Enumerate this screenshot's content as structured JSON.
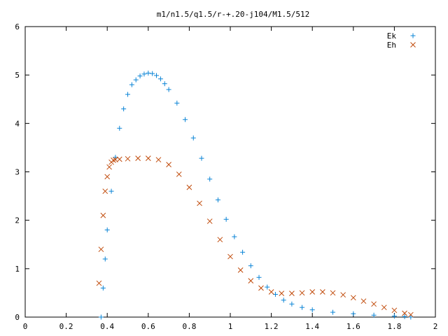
{
  "chart_data": {
    "type": "scatter",
    "title": "m1/n1.5/q1.5/r-+.20-j104/M1.5/512",
    "xlabel": "",
    "ylabel": "",
    "xlim": [
      0,
      2
    ],
    "ylim": [
      0,
      6
    ],
    "x_ticks": [
      0,
      0.2,
      0.4,
      0.6,
      0.8,
      1,
      1.2,
      1.4,
      1.6,
      1.8,
      2
    ],
    "x_tick_labels": [
      "0",
      "0.2",
      "0.4",
      "0.6",
      "0.8",
      "1",
      "1.2",
      "1.4",
      "1.6",
      "1.8",
      "2"
    ],
    "y_ticks": [
      0,
      1,
      2,
      3,
      4,
      5,
      6
    ],
    "y_tick_labels": [
      "0",
      "1",
      "2",
      "3",
      "4",
      "5",
      "6"
    ],
    "grid": false,
    "legend_position": "top-right",
    "series": [
      {
        "name": "Ek",
        "marker": "plus",
        "color": "#0a84d6",
        "x": [
          0.37,
          0.38,
          0.39,
          0.4,
          0.42,
          0.44,
          0.46,
          0.48,
          0.5,
          0.52,
          0.54,
          0.56,
          0.58,
          0.6,
          0.62,
          0.64,
          0.66,
          0.68,
          0.7,
          0.74,
          0.78,
          0.82,
          0.86,
          0.9,
          0.94,
          0.98,
          1.02,
          1.06,
          1.1,
          1.14,
          1.18,
          1.22,
          1.26,
          1.3,
          1.35,
          1.4,
          1.5,
          1.6,
          1.7,
          1.8,
          1.85,
          1.88
        ],
        "y": [
          0.0,
          0.6,
          1.2,
          1.8,
          2.6,
          3.3,
          3.9,
          4.3,
          4.6,
          4.8,
          4.9,
          4.98,
          5.02,
          5.04,
          5.03,
          4.99,
          4.92,
          4.82,
          4.7,
          4.42,
          4.08,
          3.7,
          3.28,
          2.85,
          2.42,
          2.02,
          1.66,
          1.34,
          1.06,
          0.82,
          0.62,
          0.47,
          0.35,
          0.27,
          0.2,
          0.15,
          0.1,
          0.07,
          0.04,
          0.02,
          0.01,
          0.0
        ]
      },
      {
        "name": "Eh",
        "marker": "cross",
        "color": "#c04a0a",
        "x": [
          0.36,
          0.37,
          0.38,
          0.39,
          0.4,
          0.41,
          0.42,
          0.43,
          0.44,
          0.46,
          0.5,
          0.55,
          0.6,
          0.65,
          0.7,
          0.75,
          0.8,
          0.85,
          0.9,
          0.95,
          1.0,
          1.05,
          1.1,
          1.15,
          1.2,
          1.25,
          1.3,
          1.35,
          1.4,
          1.45,
          1.5,
          1.55,
          1.6,
          1.65,
          1.7,
          1.75,
          1.8,
          1.85,
          1.88
        ],
        "y": [
          0.7,
          1.4,
          2.1,
          2.6,
          2.9,
          3.1,
          3.2,
          3.24,
          3.25,
          3.26,
          3.27,
          3.28,
          3.28,
          3.25,
          3.15,
          2.95,
          2.68,
          2.35,
          1.98,
          1.6,
          1.25,
          0.97,
          0.75,
          0.6,
          0.52,
          0.49,
          0.49,
          0.5,
          0.52,
          0.52,
          0.5,
          0.46,
          0.4,
          0.33,
          0.27,
          0.2,
          0.14,
          0.08,
          0.05
        ]
      }
    ]
  }
}
